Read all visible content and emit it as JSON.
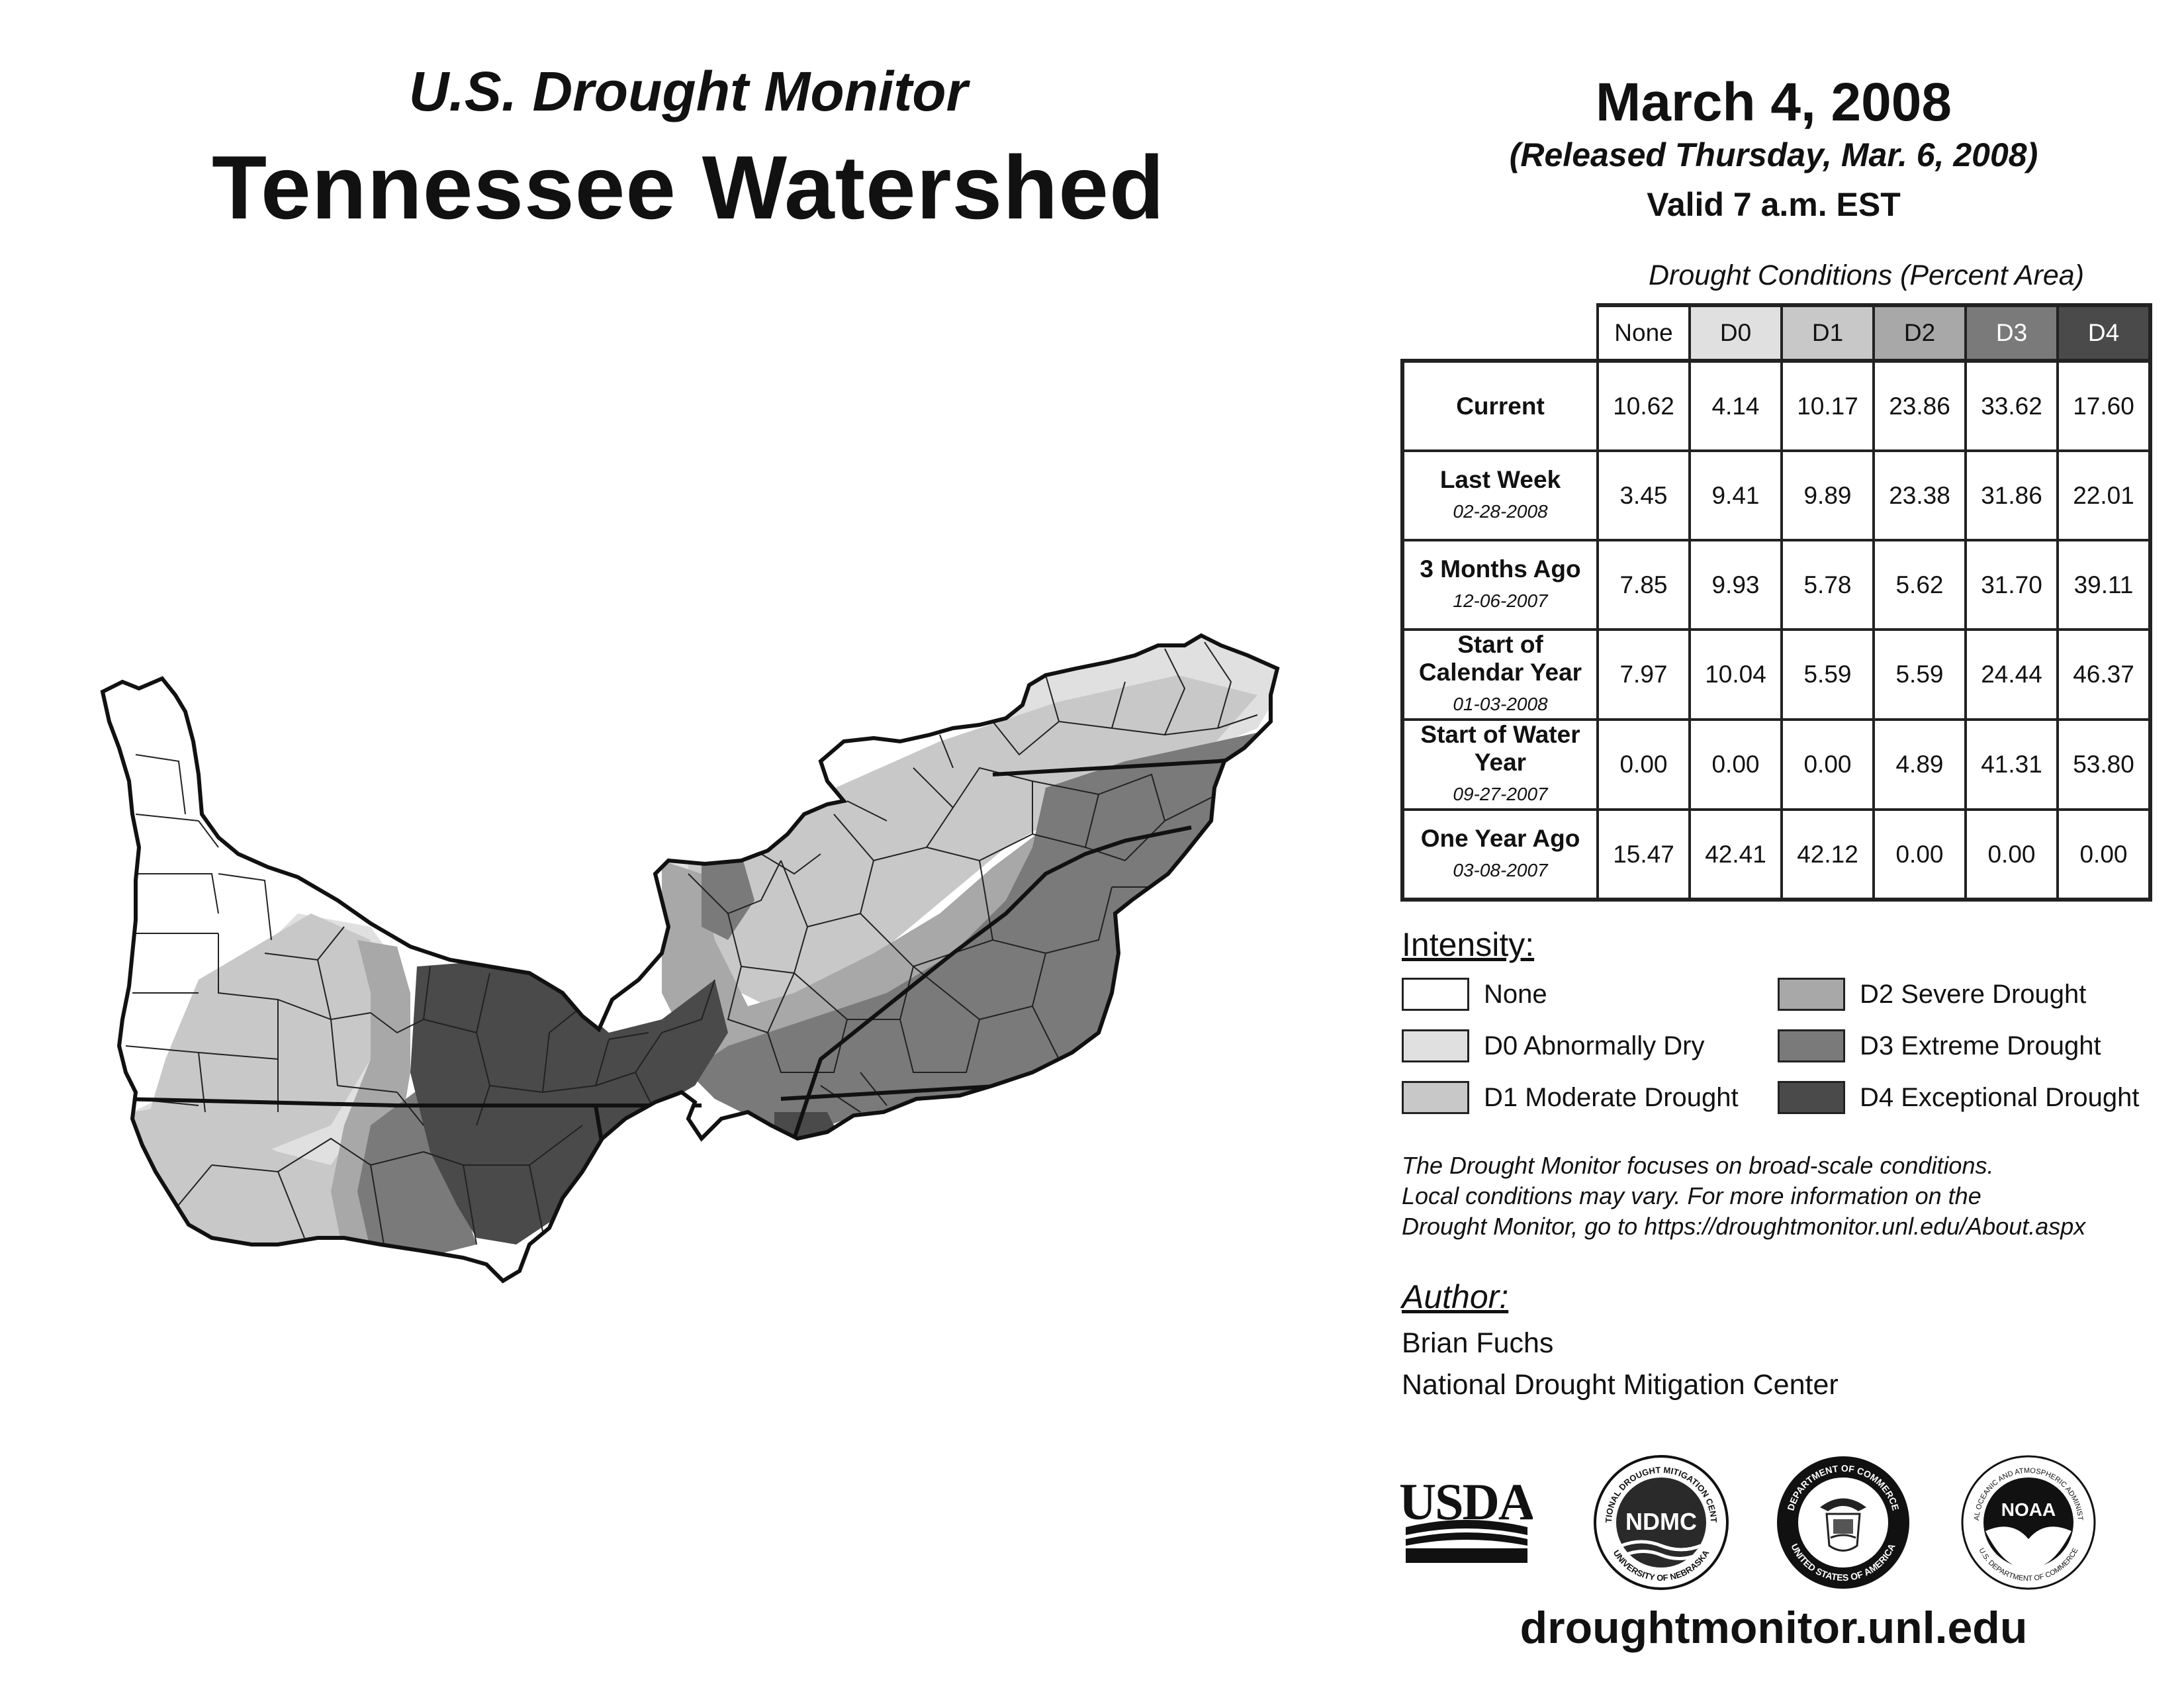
{
  "header": {
    "subtitle": "U.S. Drought Monitor",
    "title": "Tennessee Watershed"
  },
  "date": {
    "main": "March 4, 2008",
    "released": "(Released Thursday, Mar. 6, 2008)",
    "valid": "Valid 7 a.m. EST"
  },
  "table": {
    "caption": "Drought Conditions (Percent Area)",
    "columns": [
      "None",
      "D0",
      "D1",
      "D2",
      "D3",
      "D4"
    ],
    "column_colors": [
      "#ffffff",
      "#e0e0e0",
      "#c8c8c8",
      "#a8a8a8",
      "#7a7a7a",
      "#4a4a4a"
    ],
    "rows": [
      {
        "label": "Current",
        "date": "",
        "values": [
          "10.62",
          "4.14",
          "10.17",
          "23.86",
          "33.62",
          "17.60"
        ]
      },
      {
        "label": "Last Week",
        "date": "02-28-2008",
        "values": [
          "3.45",
          "9.41",
          "9.89",
          "23.38",
          "31.86",
          "22.01"
        ]
      },
      {
        "label": "3 Months Ago",
        "date": "12-06-2007",
        "values": [
          "7.85",
          "9.93",
          "5.78",
          "5.62",
          "31.70",
          "39.11"
        ]
      },
      {
        "label": "Start of Calendar Year",
        "date": "01-03-2008",
        "values": [
          "7.97",
          "10.04",
          "5.59",
          "5.59",
          "24.44",
          "46.37"
        ]
      },
      {
        "label": "Start of Water Year",
        "date": "09-27-2007",
        "values": [
          "0.00",
          "0.00",
          "0.00",
          "4.89",
          "41.31",
          "53.80"
        ]
      },
      {
        "label": "One Year Ago",
        "date": "03-08-2007",
        "values": [
          "15.47",
          "42.41",
          "42.12",
          "0.00",
          "0.00",
          "0.00"
        ]
      }
    ]
  },
  "legend": {
    "title": "Intensity:",
    "items": [
      {
        "label": "None",
        "color": "#ffffff"
      },
      {
        "label": "D0 Abnormally Dry",
        "color": "#e0e0e0"
      },
      {
        "label": "D1 Moderate Drought",
        "color": "#c8c8c8"
      },
      {
        "label": "D2 Severe Drought",
        "color": "#a8a8a8"
      },
      {
        "label": "D3 Extreme Drought",
        "color": "#7a7a7a"
      },
      {
        "label": "D4 Exceptional Drought",
        "color": "#4a4a4a"
      }
    ]
  },
  "note": {
    "line1": "The Drought Monitor focuses on broad-scale conditions.",
    "line2": "Local conditions may vary. For more information on the",
    "line3": "Drought Monitor, go to https://droughtmonitor.unl.edu/About.aspx"
  },
  "author": {
    "title": "Author:",
    "name": "Brian Fuchs",
    "org": "National Drought Mitigation Center"
  },
  "logos": {
    "usda": "USDA",
    "ndmc": "NDMC",
    "ndmc_ring_top": "NATIONAL DROUGHT MITIGATION CENTER",
    "ndmc_ring_bottom": "UNIVERSITY OF NEBRASKA",
    "doc_ring_top": "DEPARTMENT OF COMMERCE",
    "doc_ring_bottom": "UNITED STATES OF AMERICA",
    "noaa": "NOAA",
    "noaa_ring_top": "NATIONAL OCEANIC AND ATMOSPHERIC ADMINISTRATION",
    "noaa_ring_bottom": "U.S. DEPARTMENT OF COMMERCE"
  },
  "footer": {
    "url": "droughtmonitor.unl.edu"
  },
  "map": {
    "region": "Tennessee Watershed",
    "categories_shown": [
      "None",
      "D0",
      "D1",
      "D2",
      "D3",
      "D4"
    ]
  }
}
